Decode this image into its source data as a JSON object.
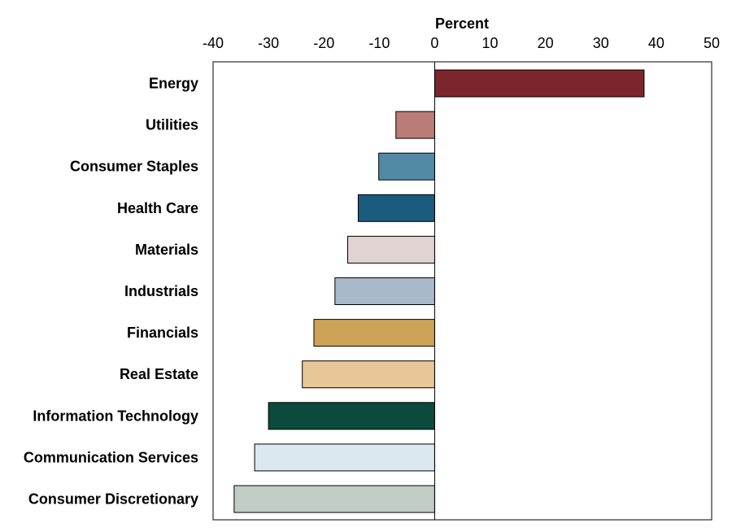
{
  "chart_data": {
    "type": "bar",
    "orientation": "horizontal",
    "xlabel": "Percent",
    "xlim": [
      -40,
      50
    ],
    "xticks": [
      -40,
      -30,
      -20,
      -10,
      0,
      10,
      20,
      30,
      40,
      50
    ],
    "grid": false,
    "legend": "none",
    "categories": [
      "Energy",
      "Utilities",
      "Consumer Staples",
      "Health Care",
      "Materials",
      "Industrials",
      "Financials",
      "Real Estate",
      "Information Technology",
      "Communication Services",
      "Consumer Discretionary"
    ],
    "values": [
      37.8,
      -7,
      -10.1,
      -13.8,
      -15.7,
      -18,
      -21.8,
      -23.9,
      -30,
      -32.5,
      -36.2
    ],
    "colors": [
      "#7d252d",
      "#ba7c76",
      "#528aa6",
      "#1b5b7e",
      "#e1d3d1",
      "#a8b9c9",
      "#cda357",
      "#e7c697",
      "#0c4a3b",
      "#dce8f0",
      "#c1ccc5"
    ]
  }
}
